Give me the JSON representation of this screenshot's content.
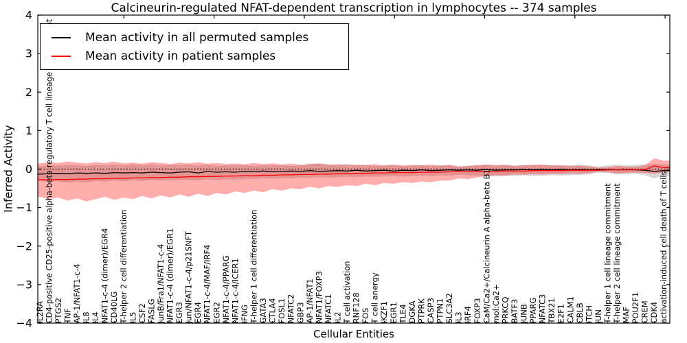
{
  "chart_data": {
    "type": "line",
    "title": "Calcineurin-regulated NFAT-dependent transcription in lymphocytes -- 374 samples",
    "xlabel": "Cellular Entities",
    "ylabel": "Inferred Activity",
    "ylim": [
      -4,
      4
    ],
    "yticks": [
      4,
      3,
      2,
      1,
      0,
      -1,
      -2,
      -3,
      -4
    ],
    "ytick_labels": [
      "4",
      "3",
      "2",
      "1",
      "0",
      "−1",
      "−2",
      "−3",
      "−4"
    ],
    "grid": false,
    "legend_position": "upper left",
    "zero_reference_line": {
      "y": 0,
      "style": "dotted",
      "color": "#000000"
    },
    "categories": [
      "IL2RA",
      "CD4-positive CD25-positive alpha-beta regulatory T cell lineage commitment",
      "PTGS2",
      "TNF",
      "AP-1/NFAT1-c-4",
      "IL8",
      "IL4",
      "NFAT1-c-4 (dimer)/EGR4",
      "CD40LG",
      "T-helper 2 cell differentiation",
      "IL5",
      "CSF2",
      "FASLG",
      "JunB/Fra1/NFAT1-c-4",
      "NFAT1-c-4 (dimer)/EGR1",
      "EGR3",
      "Jun/NFAT1-c-4/p21SNFT",
      "EGR4",
      "NFAT1-c-4/MAF/IRF4",
      "EGR2",
      "NFAT1-c-4/PPARG",
      "NFAT1-c-4/ICER1",
      "IFNG",
      "T-helper 1 cell differentiation",
      "GATA3",
      "CTLA4",
      "FOSL1",
      "NFATC2",
      "GBP3",
      "AP-1/NFAT1",
      "NFAT1/FOXP3",
      "NFATC1",
      "IL2",
      "T cell activation",
      "RNF128",
      "FOS",
      "T cell anergy",
      "IKZF1",
      "EGR1",
      "TLE4",
      "DGKA",
      "PTPRK",
      "CASP3",
      "PTPN1",
      "SLC3A2",
      "IL3",
      "IRF4",
      "FOXP3",
      "CaM/Ca2+/Calcineurin A alpha-beta B1",
      "mol:Ca2+",
      "PRKCQ",
      "BATF3",
      "JUNB",
      "PPARG",
      "NFATC3",
      "TBX21",
      "E2F1",
      "CALM1",
      "CBLB",
      "ITCH",
      "JUN",
      "T-helper 1 cell lineage commitment",
      "T-helper 2 cell lineage commitment",
      "MAF",
      "POU2F1",
      "CREM",
      "CDK4",
      "activation-induced cell death of T cells"
    ],
    "series": [
      {
        "name": "Mean activity in all permuted samples",
        "color": "#000000",
        "values": [
          -0.13,
          -0.12,
          -0.11,
          -0.12,
          -0.1,
          -0.11,
          -0.1,
          -0.11,
          -0.09,
          -0.1,
          -0.09,
          -0.1,
          -0.08,
          -0.09,
          -0.1,
          -0.08,
          -0.07,
          -0.1,
          -0.06,
          -0.08,
          -0.07,
          -0.08,
          -0.06,
          -0.07,
          -0.05,
          -0.07,
          -0.06,
          -0.05,
          -0.06,
          -0.04,
          -0.06,
          -0.05,
          -0.04,
          -0.05,
          -0.03,
          -0.05,
          -0.04,
          -0.03,
          -0.05,
          -0.03,
          -0.04,
          -0.02,
          -0.04,
          -0.03,
          -0.02,
          -0.03,
          -0.02,
          -0.03,
          -0.01,
          -0.03,
          -0.02,
          -0.02,
          -0.01,
          -0.02,
          -0.01,
          -0.02,
          -0.01,
          -0.02,
          -0.01,
          -0.02,
          -0.01,
          -0.01,
          -0.02,
          -0.01,
          -0.02,
          -0.03,
          -0.06,
          -0.04
        ]
      },
      {
        "name": "Mean activity in patient samples",
        "color": "#ff0000",
        "values": [
          -0.28,
          -0.28,
          -0.27,
          -0.27,
          -0.26,
          -0.26,
          -0.25,
          -0.25,
          -0.24,
          -0.24,
          -0.23,
          -0.23,
          -0.22,
          -0.22,
          -0.21,
          -0.21,
          -0.2,
          -0.2,
          -0.19,
          -0.19,
          -0.18,
          -0.18,
          -0.17,
          -0.17,
          -0.16,
          -0.16,
          -0.15,
          -0.15,
          -0.14,
          -0.14,
          -0.13,
          -0.13,
          -0.12,
          -0.12,
          -0.11,
          -0.11,
          -0.1,
          -0.1,
          -0.09,
          -0.09,
          -0.09,
          -0.08,
          -0.08,
          -0.08,
          -0.07,
          -0.07,
          -0.07,
          -0.06,
          -0.06,
          -0.06,
          -0.05,
          -0.05,
          -0.05,
          -0.04,
          -0.04,
          -0.04,
          -0.04,
          -0.03,
          -0.03,
          -0.03,
          -0.03,
          -0.02,
          -0.02,
          -0.02,
          -0.02,
          -0.01,
          0.08,
          0.04
        ]
      }
    ],
    "bands": [
      {
        "name": "permuted-samples-std",
        "color": "#999999",
        "opacity": 0.38,
        "upper": [
          0.08,
          0.1,
          0.09,
          0.12,
          0.1,
          0.08,
          0.11,
          0.09,
          0.12,
          0.1,
          0.13,
          0.1,
          0.12,
          0.09,
          0.11,
          0.1,
          0.12,
          0.09,
          0.11,
          0.08,
          0.1,
          0.09,
          0.11,
          0.08,
          0.1,
          0.09,
          0.11,
          0.08,
          0.1,
          0.14,
          0.15,
          0.13,
          0.1,
          0.14,
          0.09,
          0.1,
          0.08,
          0.09,
          0.1,
          0.08,
          0.09,
          0.1,
          0.08,
          0.09,
          0.1,
          0.08,
          0.09,
          0.1,
          0.12,
          0.1,
          0.11,
          0.09,
          0.1,
          0.12,
          0.1,
          0.11,
          0.09,
          0.1,
          0.12,
          0.1,
          0.06,
          0.1,
          0.12,
          0.1,
          0.11,
          0.12,
          0.14,
          0.12
        ],
        "lower": [
          -0.3,
          -0.34,
          -0.31,
          -0.36,
          -0.32,
          -0.35,
          -0.31,
          -0.33,
          -0.3,
          -0.32,
          -0.29,
          -0.31,
          -0.28,
          -0.3,
          -0.28,
          -0.29,
          -0.27,
          -0.29,
          -0.26,
          -0.28,
          -0.26,
          -0.27,
          -0.25,
          -0.26,
          -0.24,
          -0.25,
          -0.23,
          -0.24,
          -0.22,
          -0.23,
          -0.21,
          -0.22,
          -0.21,
          -0.2,
          -0.21,
          -0.19,
          -0.2,
          -0.19,
          -0.18,
          -0.19,
          -0.18,
          -0.17,
          -0.18,
          -0.16,
          -0.17,
          -0.15,
          -0.16,
          -0.17,
          -0.18,
          -0.19,
          -0.17,
          -0.18,
          -0.16,
          -0.18,
          -0.17,
          -0.16,
          -0.17,
          -0.16,
          -0.15,
          -0.14,
          -0.09,
          -0.1,
          -0.14,
          -0.13,
          -0.12,
          -0.16,
          -0.24,
          -0.18
        ]
      },
      {
        "name": "patient-samples-std",
        "color": "#ff0000",
        "opacity": 0.32,
        "upper": [
          0.15,
          0.18,
          0.16,
          0.2,
          0.17,
          0.15,
          0.18,
          0.16,
          0.19,
          0.15,
          0.17,
          0.14,
          0.18,
          0.16,
          0.13,
          0.17,
          0.15,
          0.18,
          0.14,
          0.16,
          0.13,
          0.15,
          0.12,
          0.16,
          0.13,
          0.15,
          0.12,
          0.14,
          0.11,
          0.13,
          0.14,
          0.11,
          0.13,
          0.1,
          0.12,
          0.11,
          0.13,
          0.1,
          0.12,
          0.09,
          0.11,
          0.1,
          0.12,
          0.09,
          0.11,
          0.06,
          0.08,
          0.1,
          0.12,
          0.1,
          0.11,
          0.08,
          0.1,
          0.11,
          0.12,
          0.09,
          0.1,
          0.08,
          0.09,
          0.07,
          0.04,
          0.05,
          0.08,
          0.07,
          0.06,
          0.1,
          0.28,
          0.22
        ],
        "lower": [
          -0.72,
          -0.78,
          -0.74,
          -0.82,
          -0.76,
          -0.84,
          -0.78,
          -0.72,
          -0.8,
          -0.74,
          -0.78,
          -0.7,
          -0.76,
          -0.68,
          -0.74,
          -0.66,
          -0.72,
          -0.64,
          -0.7,
          -0.62,
          -0.66,
          -0.58,
          -0.62,
          -0.56,
          -0.6,
          -0.52,
          -0.56,
          -0.5,
          -0.52,
          -0.46,
          -0.5,
          -0.44,
          -0.46,
          -0.42,
          -0.44,
          -0.38,
          -0.42,
          -0.36,
          -0.38,
          -0.34,
          -0.36,
          -0.32,
          -0.34,
          -0.3,
          -0.3,
          -0.24,
          -0.26,
          -0.22,
          -0.18,
          -0.16,
          -0.17,
          -0.14,
          -0.15,
          -0.13,
          -0.14,
          -0.12,
          -0.13,
          -0.11,
          -0.12,
          -0.1,
          -0.07,
          -0.08,
          -0.11,
          -0.1,
          -0.09,
          -0.1,
          -0.12,
          -0.08
        ]
      }
    ]
  }
}
